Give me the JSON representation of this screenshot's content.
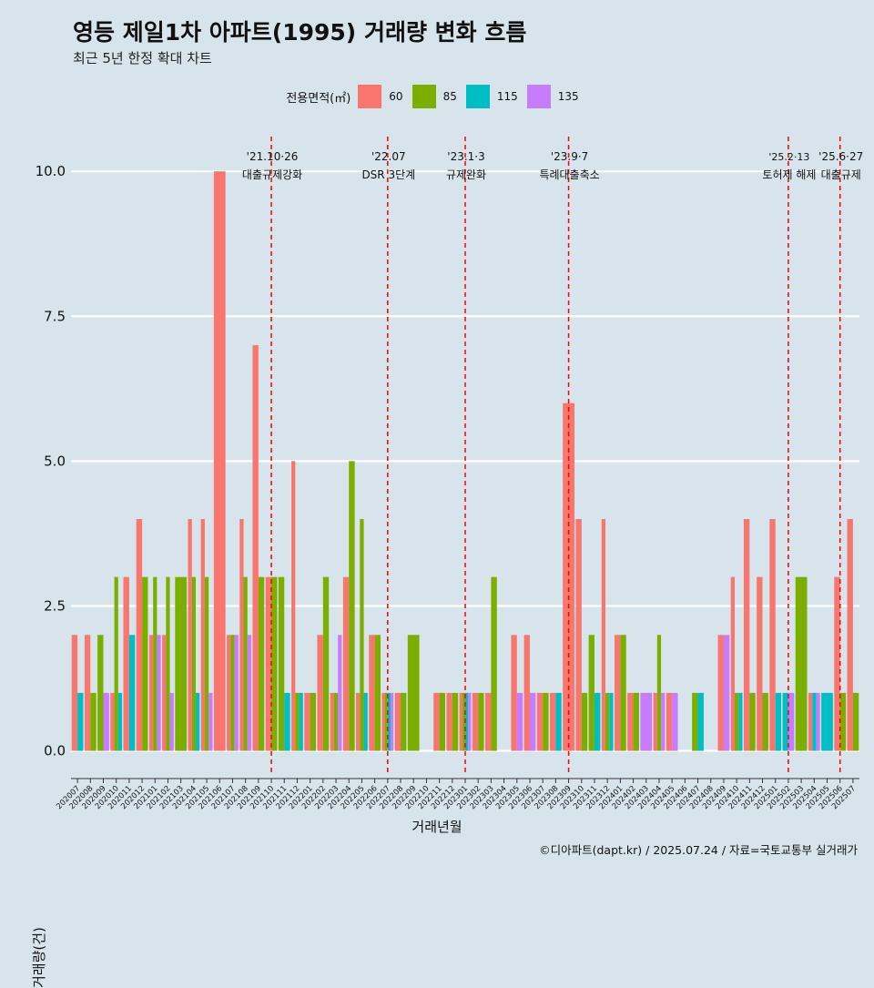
{
  "title": "영등 제일1차 아파트(1995) 거래량 변화 흐름",
  "subtitle": "최근 5년 한정 확대 차트",
  "caption": "©디아파트(dapt.kr) / 2025.07.24 / 자료=국토교통부 실거래가",
  "legend_title": "전용면적(㎡)",
  "colors": {
    "60": "#F8766D",
    "85": "#7CAE00",
    "115": "#00BFC4",
    "135": "#C77CFF",
    "vline": "#ff0000",
    "background": "#d8e4eb"
  },
  "chart_data": {
    "type": "bar",
    "xlabel": "거래년월",
    "ylabel": "거래량(건)",
    "ylim": [
      -0.4,
      10.6
    ],
    "y_ticks": [
      "0.0",
      "2.5",
      "5.0",
      "7.5",
      "10.0"
    ],
    "grid": true,
    "legend_position": "top",
    "categories": [
      "202007",
      "202008",
      "202009",
      "202010",
      "202011",
      "202012",
      "202101",
      "202102",
      "202103",
      "202104",
      "202105",
      "202106",
      "202107",
      "202108",
      "202109",
      "202110",
      "202111",
      "202112",
      "202201",
      "202202",
      "202203",
      "202204",
      "202205",
      "202206",
      "202207",
      "202208",
      "202209",
      "202210",
      "202211",
      "202212",
      "202301",
      "202302",
      "202303",
      "202304",
      "202305",
      "202306",
      "202307",
      "202308",
      "202309",
      "202310",
      "202311",
      "202312",
      "202401",
      "202402",
      "202403",
      "202404",
      "202405",
      "202406",
      "202407",
      "202408",
      "202409",
      "202410",
      "202411",
      "202412",
      "202501",
      "202502",
      "202503",
      "202504",
      "202505",
      "202506",
      "202507"
    ],
    "series": [
      {
        "name": "60",
        "values": [
          2,
          2,
          0,
          1,
          3,
          4,
          2,
          2,
          0,
          4,
          4,
          10,
          2,
          4,
          7,
          3,
          0,
          5,
          1,
          2,
          1,
          3,
          1,
          2,
          1,
          1,
          0,
          0,
          1,
          1,
          1,
          1,
          1,
          0,
          2,
          2,
          1,
          1,
          6,
          4,
          0,
          4,
          2,
          1,
          0,
          1,
          1,
          0,
          0,
          0,
          2,
          3,
          4,
          3,
          4,
          0,
          0,
          1,
          0,
          3,
          4
        ]
      },
      {
        "name": "85",
        "values": [
          0,
          1,
          2,
          3,
          0,
          3,
          3,
          3,
          3,
          3,
          3,
          0,
          2,
          3,
          3,
          3,
          3,
          1,
          1,
          3,
          1,
          5,
          4,
          2,
          1,
          1,
          2,
          0,
          1,
          1,
          1,
          1,
          3,
          0,
          0,
          0,
          1,
          0,
          0,
          1,
          2,
          1,
          2,
          1,
          0,
          2,
          0,
          0,
          1,
          0,
          0,
          1,
          1,
          1,
          0,
          0,
          3,
          0,
          0,
          1,
          1
        ]
      },
      {
        "name": "115",
        "values": [
          1,
          0,
          0,
          1,
          2,
          0,
          0,
          0,
          0,
          1,
          0,
          0,
          0,
          0,
          0,
          0,
          1,
          1,
          0,
          0,
          0,
          0,
          1,
          0,
          1,
          0,
          0,
          0,
          0,
          0,
          1,
          0,
          0,
          0,
          0,
          0,
          0,
          1,
          0,
          0,
          1,
          1,
          0,
          0,
          0,
          0,
          0,
          0,
          1,
          0,
          0,
          1,
          0,
          0,
          1,
          1,
          0,
          1,
          1,
          0,
          0
        ]
      },
      {
        "name": "135",
        "values": [
          0,
          0,
          1,
          0,
          0,
          0,
          2,
          1,
          0,
          0,
          1,
          0,
          2,
          2,
          0,
          0,
          0,
          0,
          0,
          0,
          2,
          0,
          0,
          0,
          1,
          0,
          0,
          0,
          0,
          0,
          1,
          0,
          0,
          0,
          1,
          1,
          0,
          0,
          0,
          0,
          0,
          0,
          0,
          0,
          1,
          1,
          1,
          0,
          0,
          0,
          2,
          0,
          0,
          0,
          0,
          1,
          0,
          1,
          0,
          0,
          0
        ]
      }
    ],
    "annotations": [
      {
        "x": "202110",
        "date": "'21.10·26",
        "label": "대출규제강화"
      },
      {
        "x": "202207",
        "date": "'22.07",
        "label": "DSR 3단계"
      },
      {
        "x": "202301",
        "date": "'23.1·3",
        "label": "규제완화"
      },
      {
        "x": "202309",
        "date": "'23.9·7",
        "label": "특례대출축소"
      },
      {
        "x": "202502",
        "date": "'25.2·13",
        "label": "토허제 해제"
      },
      {
        "x": "202506",
        "date": "'25.6·27",
        "label": "대출규제"
      }
    ]
  }
}
